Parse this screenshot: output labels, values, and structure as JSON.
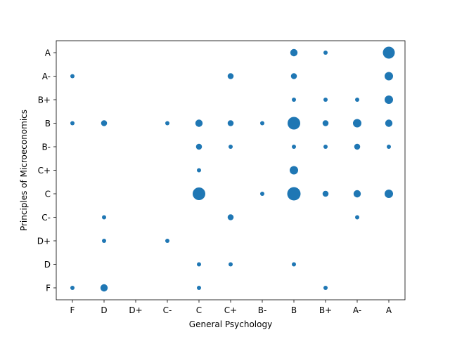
{
  "chart_data": {
    "type": "scatter",
    "xlabel": "General Psychology",
    "ylabel": "Principles of Microeconomics",
    "x_categories": [
      "F",
      "D",
      "D+",
      "C-",
      "C",
      "C+",
      "B-",
      "B",
      "B+",
      "A-",
      "A"
    ],
    "y_categories": [
      "F",
      "D",
      "D+",
      "C-",
      "C",
      "C+",
      "B-",
      "B",
      "B+",
      "A-",
      "A"
    ],
    "grid": false,
    "marker_color": "#1f77b4",
    "points": [
      {
        "x": "B",
        "y": "A",
        "count": 3
      },
      {
        "x": "B+",
        "y": "A",
        "count": 1
      },
      {
        "x": "A",
        "y": "A",
        "count": 8
      },
      {
        "x": "F",
        "y": "A-",
        "count": 1
      },
      {
        "x": "C+",
        "y": "A-",
        "count": 2
      },
      {
        "x": "B",
        "y": "A-",
        "count": 2
      },
      {
        "x": "A",
        "y": "A-",
        "count": 4
      },
      {
        "x": "B",
        "y": "B+",
        "count": 1
      },
      {
        "x": "B+",
        "y": "B+",
        "count": 1
      },
      {
        "x": "A-",
        "y": "B+",
        "count": 1
      },
      {
        "x": "A",
        "y": "B+",
        "count": 4
      },
      {
        "x": "F",
        "y": "B",
        "count": 1
      },
      {
        "x": "D",
        "y": "B",
        "count": 2
      },
      {
        "x": "C-",
        "y": "B",
        "count": 1
      },
      {
        "x": "C",
        "y": "B",
        "count": 3
      },
      {
        "x": "C+",
        "y": "B",
        "count": 2
      },
      {
        "x": "B-",
        "y": "B",
        "count": 1
      },
      {
        "x": "B",
        "y": "B",
        "count": 9
      },
      {
        "x": "B+",
        "y": "B",
        "count": 2
      },
      {
        "x": "A-",
        "y": "B",
        "count": 4
      },
      {
        "x": "A",
        "y": "B",
        "count": 3
      },
      {
        "x": "C",
        "y": "B-",
        "count": 2
      },
      {
        "x": "C+",
        "y": "B-",
        "count": 1
      },
      {
        "x": "B",
        "y": "B-",
        "count": 1
      },
      {
        "x": "B+",
        "y": "B-",
        "count": 1
      },
      {
        "x": "A-",
        "y": "B-",
        "count": 2
      },
      {
        "x": "A",
        "y": "B-",
        "count": 1
      },
      {
        "x": "C",
        "y": "C+",
        "count": 1
      },
      {
        "x": "B",
        "y": "C+",
        "count": 4
      },
      {
        "x": "C",
        "y": "C",
        "count": 9
      },
      {
        "x": "B-",
        "y": "C",
        "count": 1
      },
      {
        "x": "B",
        "y": "C",
        "count": 10
      },
      {
        "x": "B+",
        "y": "C",
        "count": 2
      },
      {
        "x": "A-",
        "y": "C",
        "count": 3
      },
      {
        "x": "A",
        "y": "C",
        "count": 4
      },
      {
        "x": "D",
        "y": "C-",
        "count": 1
      },
      {
        "x": "C+",
        "y": "C-",
        "count": 2
      },
      {
        "x": "A-",
        "y": "C-",
        "count": 1
      },
      {
        "x": "D",
        "y": "D+",
        "count": 1
      },
      {
        "x": "C-",
        "y": "D+",
        "count": 1
      },
      {
        "x": "C",
        "y": "D",
        "count": 1
      },
      {
        "x": "C+",
        "y": "D",
        "count": 1
      },
      {
        "x": "B",
        "y": "D",
        "count": 1
      },
      {
        "x": "F",
        "y": "F",
        "count": 1
      },
      {
        "x": "D",
        "y": "F",
        "count": 3
      },
      {
        "x": "C",
        "y": "F",
        "count": 1
      },
      {
        "x": "B+",
        "y": "F",
        "count": 1
      }
    ]
  }
}
